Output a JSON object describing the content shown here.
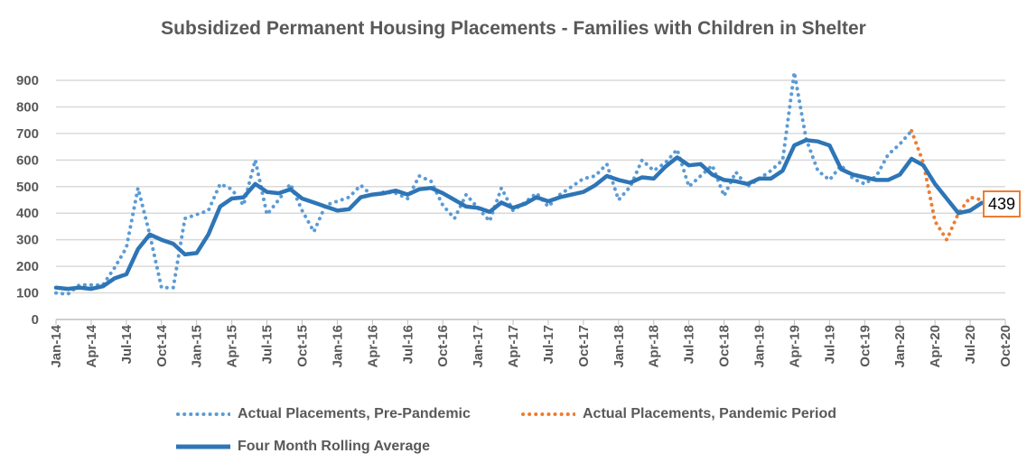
{
  "chart_data": {
    "type": "line",
    "title": "Subsidized Permanent Housing Placements - Families with Children in Shelter",
    "xlabel": "",
    "ylabel": "",
    "ylim": [
      0,
      900
    ],
    "yticks": [
      "0",
      "100",
      "200",
      "300",
      "400",
      "500",
      "600",
      "700",
      "800",
      "900"
    ],
    "xticks": [
      "Jan-14",
      "Apr-14",
      "Jul-14",
      "Oct-14",
      "Jan-15",
      "Apr-15",
      "Jul-15",
      "Oct-15",
      "Jan-16",
      "Apr-16",
      "Jul-16",
      "Oct-16",
      "Jan-17",
      "Apr-17",
      "Jul-17",
      "Oct-17",
      "Jan-18",
      "Apr-18",
      "Jul-18",
      "Oct-18",
      "Jan-19",
      "Apr-19",
      "Jul-19",
      "Oct-19",
      "Jan-20",
      "Apr-20",
      "Jul-20",
      "Oct-20"
    ],
    "x_start": "Jan-14",
    "grid": true,
    "legend_position": "bottom",
    "series": [
      {
        "name": "Actual Placements, Pre-Pandemic",
        "color": "#5b9bd5",
        "style": "dotted",
        "start_index": 0,
        "values": [
          100,
          95,
          130,
          130,
          130,
          195,
          270,
          495,
          320,
          120,
          120,
          380,
          395,
          410,
          510,
          490,
          430,
          600,
          395,
          450,
          510,
          410,
          330,
          430,
          445,
          460,
          505,
          465,
          480,
          475,
          455,
          540,
          520,
          430,
          380,
          470,
          420,
          370,
          495,
          410,
          440,
          475,
          425,
          470,
          500,
          530,
          540,
          585,
          450,
          500,
          600,
          560,
          590,
          640,
          500,
          540,
          580,
          465,
          555,
          500,
          530,
          560,
          600,
          930,
          680,
          560,
          525,
          580,
          530,
          510,
          540,
          620,
          660,
          710
        ]
      },
      {
        "name": "Actual Placements, Pandemic Period",
        "color": "#ed7d31",
        "style": "dotted",
        "start_index": 73,
        "values": [
          710,
          590,
          370,
          300,
          400,
          460,
          450
        ]
      },
      {
        "name": "Four Month Rolling Average",
        "color": "#2e75b6",
        "style": "solid",
        "start_index": 0,
        "values": [
          120,
          115,
          120,
          115,
          125,
          155,
          170,
          265,
          320,
          300,
          285,
          245,
          250,
          320,
          425,
          455,
          460,
          510,
          480,
          475,
          490,
          455,
          440,
          425,
          410,
          415,
          460,
          470,
          475,
          485,
          470,
          490,
          495,
          475,
          450,
          425,
          420,
          405,
          440,
          420,
          435,
          460,
          445,
          460,
          470,
          480,
          505,
          540,
          525,
          515,
          535,
          530,
          575,
          610,
          580,
          585,
          545,
          525,
          520,
          510,
          530,
          530,
          560,
          655,
          675,
          670,
          655,
          565,
          545,
          535,
          525,
          525,
          545,
          605,
          580,
          510,
          455,
          400,
          410,
          439
        ]
      }
    ],
    "annotations": [
      {
        "text": "439",
        "series": "Four Month Rolling Average",
        "at": "Aug-20"
      }
    ]
  }
}
